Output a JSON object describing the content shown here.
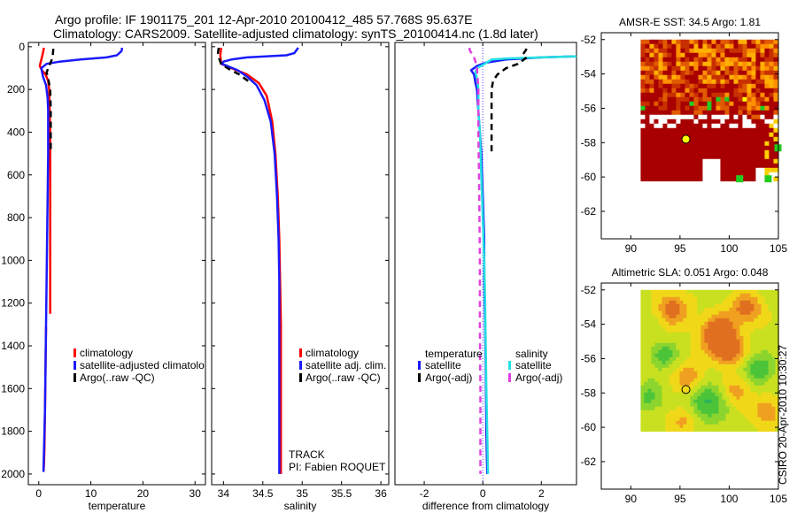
{
  "header": {
    "line1": "Argo profile: IF 1901175_201 12-Apr-2010 20100412_485 57.768S 95.637E",
    "line2": "Climatology: CARS2009. Satellite-adjusted climatology: synTS_20100414.nc (1.8d later)"
  },
  "footer": {
    "track": "TRACK",
    "pi": "PI: Fabien ROQUET",
    "credit": "CSIRO 20-Apr-2010 10:30:27"
  },
  "colors": {
    "climatology": "#ff0000",
    "satellite": "#1a1aff",
    "argo": "#000000",
    "sat_diff": "#22e0e0",
    "argo_adj_diff": "#e040e0"
  },
  "chart_data": [
    {
      "id": "temperature",
      "type": "line",
      "xlabel": "temperature",
      "ylabel": "",
      "xlim": [
        -2,
        32
      ],
      "ylim": [
        2050,
        -20
      ],
      "xticks": [
        0,
        10,
        20,
        30
      ],
      "yticks": [
        0,
        200,
        400,
        600,
        800,
        1000,
        1200,
        1400,
        1600,
        1800,
        2000
      ],
      "legend": [
        "climatology",
        "satellite-adjusted climatolo",
        "Argo(..raw -QC)"
      ],
      "series": [
        {
          "name": "climatology",
          "color": "#ff0000",
          "dash": false,
          "points": [
            [
              1.0,
              5
            ],
            [
              0.8,
              30
            ],
            [
              0.5,
              60
            ],
            [
              0.2,
              90
            ],
            [
              0.6,
              110
            ],
            [
              1.3,
              130
            ],
            [
              1.8,
              160
            ],
            [
              2.0,
              200
            ],
            [
              2.1,
              300
            ],
            [
              2.2,
              400
            ],
            [
              2.2,
              600
            ],
            [
              2.2,
              800
            ],
            [
              2.2,
              1000
            ],
            [
              2.2,
              1200
            ],
            [
              2.2,
              1250
            ]
          ]
        },
        {
          "name": "climatology-deep",
          "color": "#ff0000",
          "dash": false,
          "points": [
            [
              1.4,
              1310
            ],
            [
              1.3,
              1500
            ],
            [
              1.2,
              1700
            ],
            [
              1.1,
              1880
            ],
            [
              1.0,
              1960
            ],
            [
              0.9,
              1990
            ]
          ]
        },
        {
          "name": "satellite",
          "color": "#1a1aff",
          "dash": false,
          "points": [
            [
              16,
              5
            ],
            [
              15.9,
              20
            ],
            [
              15,
              40
            ],
            [
              13,
              50
            ],
            [
              8,
              60
            ],
            [
              4,
              70
            ],
            [
              1.5,
              80
            ],
            [
              0.5,
              100
            ],
            [
              0.8,
              140
            ],
            [
              1.4,
              180
            ],
            [
              1.7,
              240
            ],
            [
              1.8,
              300
            ],
            [
              1.8,
              400
            ],
            [
              1.8,
              500
            ],
            [
              1.7,
              700
            ],
            [
              1.6,
              900
            ],
            [
              1.5,
              1100
            ],
            [
              1.4,
              1300
            ],
            [
              1.3,
              1500
            ],
            [
              1.2,
              1700
            ],
            [
              1.1,
              1800
            ],
            [
              1.0,
              1900
            ],
            [
              0.9,
              1990
            ]
          ]
        },
        {
          "name": "argo",
          "color": "#000000",
          "dash": true,
          "points": [
            [
              2.8,
              10
            ],
            [
              2.7,
              40
            ],
            [
              2.5,
              60
            ],
            [
              2.0,
              90
            ],
            [
              1.5,
              120
            ],
            [
              1.8,
              150
            ],
            [
              2.2,
              200
            ],
            [
              2.3,
              300
            ],
            [
              2.3,
              400
            ],
            [
              2.3,
              500
            ]
          ]
        }
      ]
    },
    {
      "id": "salinity",
      "type": "line",
      "xlabel": "salinity",
      "ylabel": "",
      "xlim": [
        33.85,
        36.1
      ],
      "ylim": [
        2050,
        -20
      ],
      "xticks": [
        34,
        34.5,
        35,
        35.5,
        36
      ],
      "yticks": [
        0,
        200,
        400,
        600,
        800,
        1000,
        1200,
        1400,
        1600,
        1800,
        2000
      ],
      "legend": [
        "climatology",
        "satellite adj. clim.",
        "Argo(..raw -QC)"
      ],
      "series": [
        {
          "name": "climatology",
          "color": "#ff0000",
          "dash": false,
          "points": [
            [
              33.97,
              5
            ],
            [
              33.96,
              40
            ],
            [
              33.97,
              80
            ],
            [
              34.1,
              100
            ],
            [
              34.3,
              130
            ],
            [
              34.45,
              170
            ],
            [
              34.55,
              230
            ],
            [
              34.62,
              350
            ],
            [
              34.66,
              500
            ],
            [
              34.69,
              700
            ],
            [
              34.71,
              900
            ],
            [
              34.72,
              1100
            ],
            [
              34.73,
              1300
            ],
            [
              34.73,
              1500
            ],
            [
              34.73,
              1700
            ],
            [
              34.73,
              1900
            ],
            [
              34.73,
              2000
            ]
          ]
        },
        {
          "name": "satellite",
          "color": "#1a1aff",
          "dash": false,
          "points": [
            [
              34.95,
              5
            ],
            [
              34.9,
              30
            ],
            [
              34.8,
              40
            ],
            [
              34.3,
              50
            ],
            [
              34.1,
              60
            ],
            [
              34.0,
              70
            ],
            [
              33.98,
              80
            ],
            [
              34.05,
              90
            ],
            [
              34.18,
              110
            ],
            [
              34.3,
              140
            ],
            [
              34.42,
              180
            ],
            [
              34.52,
              250
            ],
            [
              34.6,
              350
            ],
            [
              34.65,
              500
            ],
            [
              34.68,
              700
            ],
            [
              34.7,
              900
            ],
            [
              34.71,
              1100
            ],
            [
              34.71,
              1300
            ],
            [
              34.71,
              1500
            ],
            [
              34.71,
              1700
            ],
            [
              34.71,
              1900
            ],
            [
              34.71,
              2000
            ]
          ]
        },
        {
          "name": "argo",
          "color": "#000000",
          "dash": true,
          "points": [
            [
              33.94,
              5
            ],
            [
              33.93,
              30
            ],
            [
              33.95,
              60
            ],
            [
              33.97,
              80
            ],
            [
              34.05,
              100
            ],
            [
              34.2,
              130
            ],
            [
              34.35,
              170
            ]
          ]
        }
      ]
    },
    {
      "id": "difference",
      "type": "line",
      "xlabel": "difference from climatology",
      "ylabel": "",
      "xlim": [
        -3,
        3.2
      ],
      "ylim": [
        2050,
        -20
      ],
      "xticks": [
        -2,
        0,
        2
      ],
      "yticks": [],
      "legend": [
        "temperature",
        "satellite",
        "Argo(-adj)",
        "salinity",
        "satellite",
        "Argo(-adj)"
      ],
      "series": [
        {
          "name": "temperature satellite",
          "color": "#1a1aff",
          "dash": false,
          "points": [
            [
              3.2,
              45
            ],
            [
              2,
              50
            ],
            [
              0.8,
              60
            ],
            [
              0.1,
              75
            ],
            [
              -0.2,
              90
            ],
            [
              -0.4,
              110
            ],
            [
              -0.3,
              130
            ],
            [
              -0.25,
              170
            ],
            [
              -0.2,
              200
            ],
            [
              -0.15,
              300
            ],
            [
              -0.1,
              400
            ],
            [
              -0.05,
              500
            ],
            [
              0.0,
              700
            ],
            [
              0.05,
              900
            ],
            [
              0.05,
              1100
            ],
            [
              0.08,
              1300
            ],
            [
              0.1,
              1500
            ],
            [
              0.12,
              1800
            ],
            [
              0.15,
              2000
            ]
          ]
        },
        {
          "name": "salinity satellite",
          "color": "#22e0e0",
          "dash": false,
          "points": [
            [
              3.2,
              45
            ],
            [
              2.0,
              50
            ],
            [
              0.8,
              55
            ],
            [
              0.3,
              60
            ],
            [
              0.0,
              85
            ],
            [
              -0.2,
              100
            ],
            [
              -0.25,
              120
            ],
            [
              -0.2,
              150
            ],
            [
              -0.15,
              200
            ],
            [
              -0.15,
              300
            ],
            [
              -0.1,
              400
            ],
            [
              -0.05,
              600
            ],
            [
              0.0,
              800
            ],
            [
              0.05,
              1000
            ],
            [
              0.08,
              1200
            ],
            [
              0.1,
              1400
            ],
            [
              0.12,
              1600
            ],
            [
              0.15,
              1800
            ],
            [
              0.18,
              2000
            ]
          ]
        },
        {
          "name": "temperature Argo(-adj)",
          "color": "#000000",
          "dash": true,
          "points": [
            [
              1.5,
              10
            ],
            [
              1.4,
              30
            ],
            [
              1.5,
              50
            ],
            [
              1.2,
              80
            ],
            [
              0.8,
              100
            ],
            [
              0.5,
              130
            ],
            [
              0.35,
              160
            ],
            [
              0.3,
              200
            ],
            [
              0.3,
              300
            ],
            [
              0.3,
              400
            ],
            [
              0.3,
              500
            ]
          ]
        },
        {
          "name": "salinity Argo(-adj)",
          "color": "#e040e0",
          "dash": true,
          "points": [
            [
              -0.45,
              5
            ],
            [
              -0.45,
              15
            ],
            [
              -0.3,
              50
            ],
            [
              -0.25,
              70
            ],
            [
              -0.2,
              100
            ],
            [
              -0.15,
              200
            ],
            [
              -0.15,
              400
            ],
            [
              -0.12,
              700
            ],
            [
              -0.1,
              1000
            ],
            [
              -0.1,
              1300
            ],
            [
              -0.08,
              1600
            ],
            [
              -0.08,
              1900
            ],
            [
              -0.08,
              2000
            ]
          ]
        }
      ]
    },
    {
      "id": "sst_map",
      "type": "heatmap",
      "title": "AMSR-E SST: 34.5 Argo: 1.81",
      "xlim": [
        87,
        105
      ],
      "ylim": [
        -63.6,
        -51.6
      ],
      "xticks": [
        90,
        95,
        100,
        105
      ],
      "yticks": [
        -52,
        -54,
        -56,
        -58,
        -60,
        -62
      ],
      "yticklabels": [
        "-52",
        "-54",
        "-56",
        "-58",
        "-60",
        "-62"
      ],
      "data_extent": {
        "lon": [
          91,
          105
        ],
        "lat": [
          -60.2,
          -52
        ]
      },
      "marker": {
        "lon": 95.6,
        "lat": -57.8,
        "fill": "#ffff00"
      }
    },
    {
      "id": "sla_map",
      "type": "heatmap",
      "title": "Altimetric SLA: 0.051 Argo: 0.048",
      "xlim": [
        87,
        105
      ],
      "ylim": [
        -63.6,
        -51.6
      ],
      "xticks": [
        90,
        95,
        100,
        105
      ],
      "yticks": [
        -52,
        -54,
        -56,
        -58,
        -60,
        -62
      ],
      "yticklabels": [
        "-52",
        "-54",
        "-56",
        "-58",
        "-60",
        "-62"
      ],
      "data_extent": {
        "lon": [
          91,
          105
        ],
        "lat": [
          -60.2,
          -52
        ]
      },
      "marker": {
        "lon": 95.6,
        "lat": -57.8,
        "fill": "none"
      }
    }
  ]
}
